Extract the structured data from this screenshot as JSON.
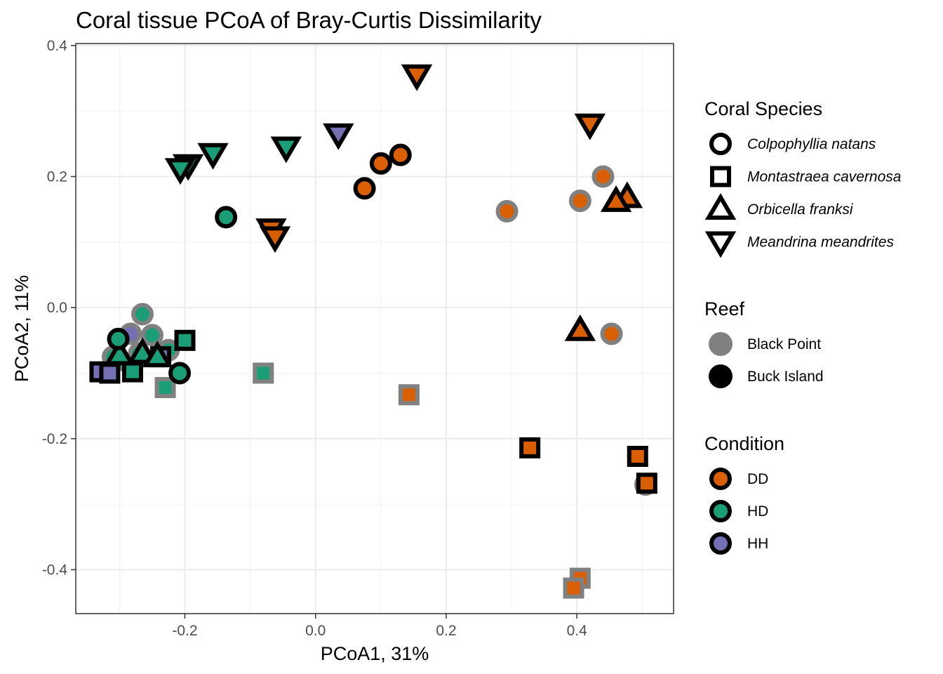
{
  "chart_data": {
    "type": "scatter",
    "title": "Coral tissue PCoA of Bray-Curtis Dissimilarity",
    "xlabel": "PCoA1, 31%",
    "ylabel": "PCoA2, 11%",
    "xlim": [
      -0.367,
      0.548
    ],
    "ylim": [
      -0.467,
      0.403
    ],
    "x_ticks": [
      -0.2,
      0.0,
      0.2,
      0.4
    ],
    "x_tick_labels": [
      "-0.2",
      "0.0",
      "0.2",
      "0.4"
    ],
    "y_ticks": [
      -0.4,
      -0.2,
      0.0,
      0.2,
      0.4
    ],
    "y_tick_labels": [
      "-0.4",
      "-0.2",
      "0.0",
      "0.2",
      "0.4"
    ],
    "grid": true,
    "legend_position": "right",
    "condition_colors": {
      "DD": "#D95F02",
      "HD": "#1B9E77",
      "HH": "#7570B3"
    },
    "reef_colors": {
      "Black Point": "#808080",
      "Buck Island": "#000000"
    },
    "legends": {
      "species": {
        "title": "Coral Species",
        "items": [
          {
            "label": "Colpophyllia natans",
            "shape": "circle"
          },
          {
            "label": "Montastraea cavernosa",
            "shape": "square"
          },
          {
            "label": "Orbicella franksi",
            "shape": "triangle-up"
          },
          {
            "label": "Meandrina meandrites",
            "shape": "triangle-down"
          }
        ]
      },
      "reef": {
        "title": "Reef",
        "items": [
          {
            "label": "Black Point",
            "color": "#808080"
          },
          {
            "label": "Buck Island",
            "color": "#000000"
          }
        ]
      },
      "condition": {
        "title": "Condition",
        "items": [
          {
            "label": "DD",
            "color": "#D95F02"
          },
          {
            "label": "HD",
            "color": "#1B9E77"
          },
          {
            "label": "HH",
            "color": "#7570B3"
          }
        ]
      }
    },
    "points": [
      {
        "x": 0.155,
        "y": 0.355,
        "shape": "triangle-down",
        "reef": "Buck Island",
        "condition": "DD"
      },
      {
        "x": 0.42,
        "y": 0.28,
        "shape": "triangle-down",
        "reef": "Buck Island",
        "condition": "DD"
      },
      {
        "x": 0.035,
        "y": 0.265,
        "shape": "triangle-down",
        "reef": "Buck Island",
        "condition": "HH"
      },
      {
        "x": -0.045,
        "y": 0.245,
        "shape": "triangle-down",
        "reef": "Buck Island",
        "condition": "HD"
      },
      {
        "x": -0.157,
        "y": 0.235,
        "shape": "triangle-down",
        "reef": "Buck Island",
        "condition": "HD"
      },
      {
        "x": -0.195,
        "y": 0.218,
        "shape": "triangle-down",
        "reef": "Buck Island",
        "condition": "HD"
      },
      {
        "x": -0.207,
        "y": 0.212,
        "shape": "triangle-down",
        "reef": "Buck Island",
        "condition": "HD"
      },
      {
        "x": -0.068,
        "y": 0.12,
        "shape": "triangle-down",
        "reef": "Buck Island",
        "condition": "DD"
      },
      {
        "x": -0.062,
        "y": 0.108,
        "shape": "triangle-down",
        "reef": "Buck Island",
        "condition": "DD"
      },
      {
        "x": 0.13,
        "y": 0.233,
        "shape": "circle",
        "reef": "Buck Island",
        "condition": "DD"
      },
      {
        "x": 0.1,
        "y": 0.22,
        "shape": "circle",
        "reef": "Buck Island",
        "condition": "DD"
      },
      {
        "x": 0.075,
        "y": 0.182,
        "shape": "circle",
        "reef": "Buck Island",
        "condition": "DD"
      },
      {
        "x": -0.137,
        "y": 0.138,
        "shape": "circle",
        "reef": "Buck Island",
        "condition": "HD"
      },
      {
        "x": 0.44,
        "y": 0.2,
        "shape": "circle",
        "reef": "Black Point",
        "condition": "DD"
      },
      {
        "x": 0.405,
        "y": 0.163,
        "shape": "circle",
        "reef": "Black Point",
        "condition": "DD"
      },
      {
        "x": 0.293,
        "y": 0.147,
        "shape": "circle",
        "reef": "Black Point",
        "condition": "DD"
      },
      {
        "x": 0.453,
        "y": -0.04,
        "shape": "circle",
        "reef": "Black Point",
        "condition": "DD"
      },
      {
        "x": 0.477,
        "y": 0.168,
        "shape": "triangle-up",
        "reef": "Buck Island",
        "condition": "DD"
      },
      {
        "x": 0.46,
        "y": 0.162,
        "shape": "triangle-up",
        "reef": "Buck Island",
        "condition": "DD"
      },
      {
        "x": 0.405,
        "y": -0.035,
        "shape": "triangle-up",
        "reef": "Buck Island",
        "condition": "DD"
      },
      {
        "x": 0.505,
        "y": -0.27,
        "shape": "circle",
        "reef": "Black Point",
        "condition": "DD"
      },
      {
        "x": 0.493,
        "y": -0.227,
        "shape": "square",
        "reef": "Buck Island",
        "condition": "DD"
      },
      {
        "x": 0.507,
        "y": -0.268,
        "shape": "square",
        "reef": "Buck Island",
        "condition": "DD"
      },
      {
        "x": 0.328,
        "y": -0.214,
        "shape": "square",
        "reef": "Buck Island",
        "condition": "DD"
      },
      {
        "x": 0.143,
        "y": -0.133,
        "shape": "square",
        "reef": "Black Point",
        "condition": "DD"
      },
      {
        "x": 0.405,
        "y": -0.413,
        "shape": "square",
        "reef": "Black Point",
        "condition": "DD"
      },
      {
        "x": 0.395,
        "y": -0.428,
        "shape": "square",
        "reef": "Black Point",
        "condition": "DD"
      },
      {
        "x": -0.08,
        "y": -0.1,
        "shape": "square",
        "reef": "Black Point",
        "condition": "HD"
      },
      {
        "x": -0.23,
        "y": -0.122,
        "shape": "square",
        "reef": "Black Point",
        "condition": "HD"
      },
      {
        "x": -0.265,
        "y": -0.01,
        "shape": "circle",
        "reef": "Black Point",
        "condition": "HD"
      },
      {
        "x": -0.25,
        "y": -0.042,
        "shape": "circle",
        "reef": "Black Point",
        "condition": "HD"
      },
      {
        "x": -0.283,
        "y": -0.04,
        "shape": "circle",
        "reef": "Black Point",
        "condition": "HH"
      },
      {
        "x": -0.225,
        "y": -0.065,
        "shape": "circle",
        "reef": "Black Point",
        "condition": "HD"
      },
      {
        "x": -0.31,
        "y": -0.075,
        "shape": "circle",
        "reef": "Black Point",
        "condition": "HD"
      },
      {
        "x": -0.27,
        "y": -0.07,
        "shape": "circle",
        "reef": "Black Point",
        "condition": "HD"
      },
      {
        "x": -0.3,
        "y": -0.08,
        "shape": "circle",
        "reef": "Black Point",
        "condition": "HD"
      },
      {
        "x": -0.33,
        "y": -0.098,
        "shape": "square",
        "reef": "Buck Island",
        "condition": "HH"
      },
      {
        "x": -0.315,
        "y": -0.1,
        "shape": "square",
        "reef": "Buck Island",
        "condition": "HH"
      },
      {
        "x": -0.28,
        "y": -0.098,
        "shape": "square",
        "reef": "Buck Island",
        "condition": "HD"
      },
      {
        "x": -0.237,
        "y": -0.075,
        "shape": "square",
        "reef": "Buck Island",
        "condition": "HH"
      },
      {
        "x": -0.2,
        "y": -0.05,
        "shape": "square",
        "reef": "Buck Island",
        "condition": "HD"
      },
      {
        "x": -0.3,
        "y": -0.072,
        "shape": "triangle-up",
        "reef": "Buck Island",
        "condition": "HD"
      },
      {
        "x": -0.265,
        "y": -0.07,
        "shape": "triangle-up",
        "reef": "Buck Island",
        "condition": "HD"
      },
      {
        "x": -0.242,
        "y": -0.075,
        "shape": "triangle-up",
        "reef": "Buck Island",
        "condition": "HD"
      },
      {
        "x": -0.302,
        "y": -0.048,
        "shape": "circle",
        "reef": "Buck Island",
        "condition": "HD"
      },
      {
        "x": -0.208,
        "y": -0.1,
        "shape": "circle",
        "reef": "Buck Island",
        "condition": "HD"
      }
    ]
  }
}
